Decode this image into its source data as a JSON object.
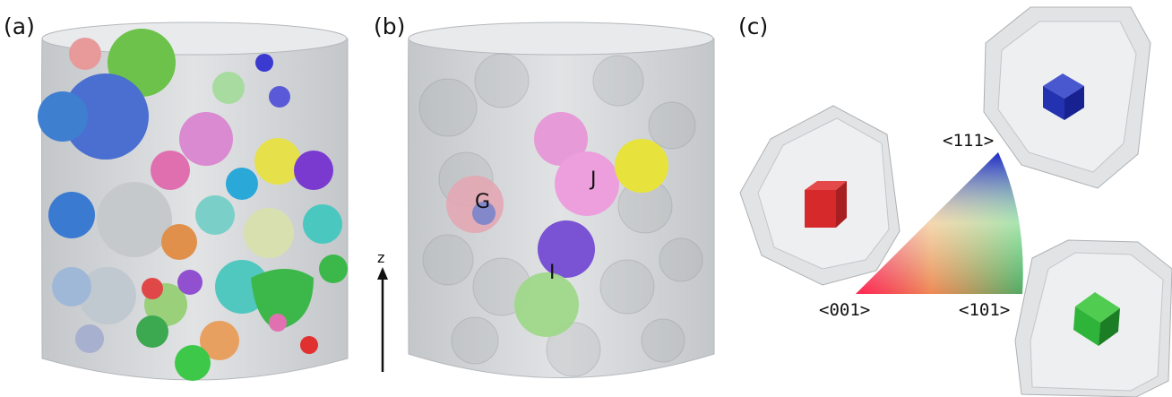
{
  "panels": {
    "a": {
      "label": "(a)"
    },
    "b": {
      "label": "(b)",
      "grains": {
        "G": "G",
        "J": "J",
        "I": "I"
      }
    },
    "c": {
      "label": "(c)"
    }
  },
  "axis": {
    "label": "z"
  },
  "ipf": {
    "corner_001": "<001>",
    "corner_101": "<101>",
    "corner_111": "<111>"
  },
  "colors": {
    "cylinder": "#d4d6d8",
    "cube_001": "#d6292b",
    "cube_101": "#2fb43a",
    "cube_111": "#2332b0"
  }
}
